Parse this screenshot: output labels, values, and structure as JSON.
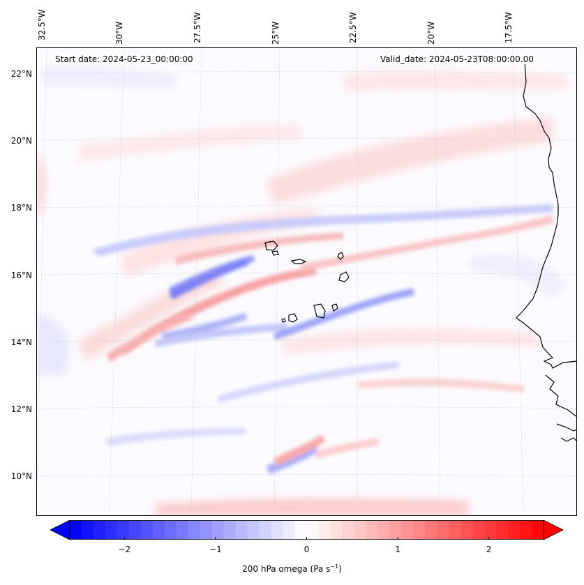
{
  "map": {
    "start_date_label": "Start date: 2024-05-23_00:00:00",
    "valid_date_label": "Valid_date: 2024-05-23T08:00:00.00",
    "longitude_labels": [
      "32.5°W",
      "30°W",
      "27.5°W",
      "25°W",
      "22.5°W",
      "20°W",
      "17.5°W"
    ],
    "latitude_labels": [
      "22°N",
      "20°N",
      "18°N",
      "16°N",
      "14°N",
      "12°N",
      "10°N"
    ],
    "variable": "200 hPa omega",
    "units_prefix": "(Pa s",
    "units_exp": "−1",
    "units_suffix": ")",
    "colorbar_ticks": [
      "−2",
      "−1",
      "0",
      "1",
      "2"
    ],
    "colorbar_range": [
      -2.6,
      2.6
    ],
    "colormap": {
      "negative": "#0000ff",
      "zero": "#ffffff",
      "positive": "#ff0000"
    },
    "coastline_color": "#000000"
  }
}
